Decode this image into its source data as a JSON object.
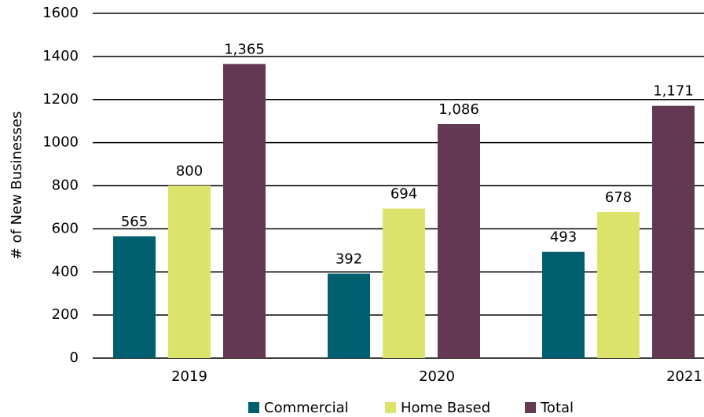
{
  "chart_data": {
    "type": "bar",
    "y_label": "# of New Businesses",
    "categories": [
      "2019",
      "2020",
      "2021"
    ],
    "series": [
      {
        "name": "Commercial",
        "color": "#005f6e",
        "values": [
          565,
          392,
          493
        ]
      },
      {
        "name": "Home Based",
        "color": "#dce36a",
        "values": [
          800,
          694,
          678
        ]
      },
      {
        "name": "Total",
        "color": "#633852",
        "values": [
          1365,
          1086,
          1171
        ],
        "value_labels": [
          "1,365",
          "1,086",
          "1,171"
        ]
      }
    ],
    "ylim": [
      0,
      1600
    ],
    "yticks": [
      0,
      200,
      400,
      600,
      800,
      1000,
      1200,
      1400,
      1600
    ],
    "grid": true,
    "legend": "bottom"
  }
}
